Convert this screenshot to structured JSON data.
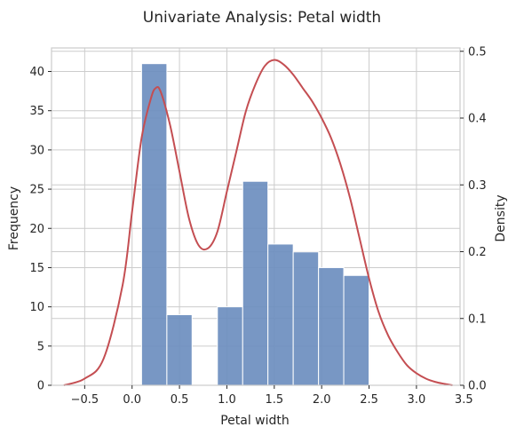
{
  "chart_data": {
    "type": "bar",
    "title": "Univariate Analysis: Petal width",
    "xlabel": "Petal width",
    "ylabel": "Frequency",
    "y2label": "Density",
    "xlim": [
      -0.85,
      3.46
    ],
    "ylim": [
      0,
      43
    ],
    "y2lim": [
      0,
      0.505
    ],
    "xticks": [
      -0.5,
      0.0,
      0.5,
      1.0,
      1.5,
      2.0,
      2.5,
      3.0,
      3.5
    ],
    "xtick_labels": [
      "−0.5",
      "0.0",
      "0.5",
      "1.0",
      "1.5",
      "2.0",
      "2.5",
      "3.0",
      "3.5"
    ],
    "yticks": [
      0,
      5,
      10,
      15,
      20,
      25,
      30,
      35,
      40
    ],
    "ytick_labels": [
      "0",
      "5",
      "10",
      "15",
      "20",
      "25",
      "30",
      "35",
      "40"
    ],
    "y2ticks": [
      0.0,
      0.1,
      0.2,
      0.3,
      0.4,
      0.5
    ],
    "y2tick_labels": [
      "0.0",
      "0.1",
      "0.2",
      "0.3",
      "0.4",
      "0.5"
    ],
    "grid": true,
    "bar_color": "#6c8ebf",
    "line_color": "#c44e52",
    "bins": [
      {
        "start": 0.1,
        "end": 0.367,
        "value": 41
      },
      {
        "start": 0.367,
        "end": 0.633,
        "value": 9
      },
      {
        "start": 0.633,
        "end": 0.9,
        "value": 0
      },
      {
        "start": 0.9,
        "end": 1.167,
        "value": 10
      },
      {
        "start": 1.167,
        "end": 1.433,
        "value": 26
      },
      {
        "start": 1.433,
        "end": 1.7,
        "value": 18
      },
      {
        "start": 1.7,
        "end": 1.967,
        "value": 17
      },
      {
        "start": 1.967,
        "end": 2.233,
        "value": 15
      },
      {
        "start": 2.233,
        "end": 2.5,
        "value": 14
      }
    ],
    "density": {
      "name": "",
      "x": [
        -0.72,
        -0.5,
        -0.3,
        -0.1,
        0.0,
        0.1,
        0.2,
        0.25,
        0.3,
        0.4,
        0.5,
        0.6,
        0.7,
        0.8,
        0.9,
        1.0,
        1.1,
        1.2,
        1.3,
        1.4,
        1.5,
        1.6,
        1.7,
        1.8,
        1.9,
        2.0,
        2.1,
        2.2,
        2.3,
        2.4,
        2.5,
        2.6,
        2.7,
        2.8,
        2.9,
        3.0,
        3.1,
        3.2,
        3.3,
        3.38
      ],
      "y": [
        0.0,
        0.01,
        0.04,
        0.15,
        0.26,
        0.37,
        0.43,
        0.445,
        0.44,
        0.39,
        0.32,
        0.25,
        0.21,
        0.205,
        0.23,
        0.29,
        0.35,
        0.41,
        0.45,
        0.478,
        0.487,
        0.48,
        0.465,
        0.445,
        0.425,
        0.4,
        0.37,
        0.33,
        0.28,
        0.22,
        0.16,
        0.11,
        0.075,
        0.05,
        0.03,
        0.018,
        0.01,
        0.005,
        0.002,
        0.0
      ]
    }
  }
}
